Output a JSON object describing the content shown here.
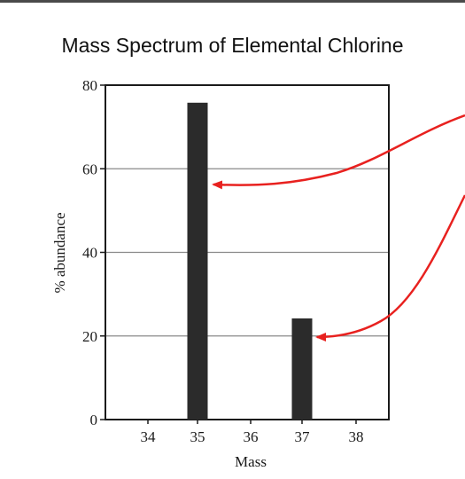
{
  "page": {
    "title": "Mass Spectrum of Elemental Chlorine"
  },
  "chart_data": {
    "type": "bar",
    "title": "Mass Spectrum of Elemental Chlorine",
    "xlabel": "Mass",
    "ylabel": "% abundance",
    "categories": [
      "34",
      "35",
      "36",
      "37",
      "38"
    ],
    "values": [
      0,
      75.8,
      0,
      24.2,
      0
    ],
    "ylim": [
      0,
      80
    ],
    "yticks": [
      "0",
      "20",
      "40",
      "60",
      "80"
    ],
    "grid": true,
    "bar_color": "#2b2b2b",
    "annotation_color": "#e8211f",
    "annotations": [
      "arrow-to-bar-35",
      "arrow-to-bar-37"
    ]
  }
}
